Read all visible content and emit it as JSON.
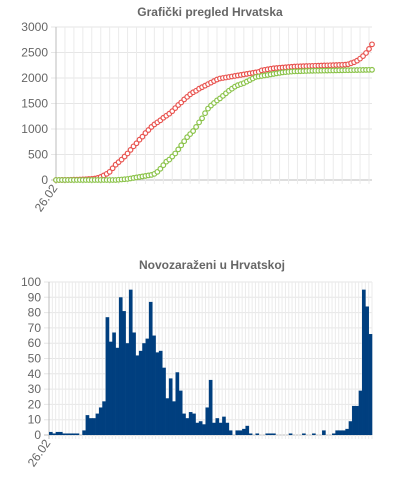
{
  "chart_data": [
    {
      "type": "scatter",
      "title": "Grafički pregled Hrvatska",
      "xlabel": "",
      "ylabel": "",
      "x_tick_labels": [
        "26.02"
      ],
      "y_ticks": [
        "0",
        "500",
        "1000",
        "1500",
        "2000",
        "2500",
        "3000"
      ],
      "ylim": [
        0,
        3000
      ],
      "grid": true,
      "legend": "none",
      "point_count": 107,
      "series": [
        {
          "color": "#e8534f",
          "values": [
            0,
            0,
            1,
            2,
            3,
            4,
            6,
            8,
            10,
            12,
            14,
            18,
            22,
            28,
            40,
            60,
            90,
            120,
            160,
            230,
            300,
            350,
            400,
            460,
            520,
            590,
            660,
            720,
            790,
            850,
            920,
            980,
            1040,
            1090,
            1130,
            1170,
            1220,
            1260,
            1300,
            1350,
            1410,
            1470,
            1520,
            1580,
            1630,
            1680,
            1720,
            1750,
            1790,
            1820,
            1850,
            1880,
            1910,
            1940,
            1970,
            1990,
            2000,
            2010,
            2020,
            2030,
            2040,
            2050,
            2060,
            2070,
            2080,
            2090,
            2100,
            2110,
            2120,
            2150,
            2160,
            2170,
            2180,
            2190,
            2195,
            2200,
            2205,
            2210,
            2215,
            2220,
            2225,
            2228,
            2230,
            2232,
            2234,
            2236,
            2238,
            2240,
            2242,
            2244,
            2246,
            2248,
            2250,
            2252,
            2254,
            2256,
            2258,
            2262,
            2270,
            2290,
            2310,
            2340,
            2380,
            2430,
            2490,
            2570,
            2660
          ]
        },
        {
          "color": "#8bc34a",
          "values": [
            0,
            0,
            0,
            0,
            0,
            0,
            0,
            0,
            0,
            0,
            0,
            0,
            0,
            0,
            0,
            0,
            0,
            0,
            0,
            0,
            0,
            5,
            10,
            15,
            20,
            30,
            40,
            50,
            60,
            70,
            80,
            90,
            100,
            120,
            160,
            220,
            290,
            360,
            400,
            460,
            520,
            600,
            680,
            760,
            840,
            900,
            960,
            1040,
            1130,
            1210,
            1310,
            1400,
            1460,
            1510,
            1560,
            1600,
            1650,
            1700,
            1750,
            1790,
            1830,
            1860,
            1880,
            1900,
            1930,
            1960,
            1990,
            2020,
            2030,
            2040,
            2050,
            2060,
            2070,
            2080,
            2090,
            2100,
            2110,
            2115,
            2120,
            2125,
            2130,
            2132,
            2134,
            2136,
            2138,
            2140,
            2141,
            2142,
            2143,
            2144,
            2145,
            2146,
            2147,
            2148,
            2149,
            2150,
            2151,
            2152,
            2153,
            2154,
            2155,
            2156,
            2157,
            2158,
            2159,
            2160,
            2161
          ]
        }
      ]
    },
    {
      "type": "bar",
      "title": "Novozaraženi u Hrvatskoj",
      "xlabel": "",
      "ylabel": "",
      "x_tick_labels": [
        "26.02"
      ],
      "y_ticks": [
        "0",
        "10",
        "20",
        "30",
        "40",
        "50",
        "60",
        "70",
        "80",
        "90",
        "100"
      ],
      "ylim": [
        0,
        100
      ],
      "grid": true,
      "legend": "none",
      "series": [
        {
          "color": "#003f7f",
          "values": [
            2,
            1,
            2,
            2,
            1,
            1,
            1,
            1,
            1,
            0,
            3,
            13,
            11,
            11,
            14,
            18,
            22,
            77,
            61,
            67,
            57,
            90,
            81,
            60,
            95,
            67,
            52,
            55,
            60,
            63,
            87,
            65,
            54,
            55,
            44,
            24,
            37,
            22,
            41,
            29,
            14,
            11,
            15,
            14,
            8,
            9,
            7,
            18,
            36,
            8,
            11,
            8,
            12,
            8,
            3,
            0,
            3,
            3,
            4,
            6,
            1,
            0,
            1,
            0,
            0,
            1,
            1,
            1,
            0,
            0,
            0,
            0,
            1,
            0,
            0,
            0,
            1,
            0,
            0,
            1,
            0,
            0,
            3,
            0,
            0,
            1,
            3,
            3,
            3,
            4,
            9,
            19,
            19,
            29,
            95,
            84,
            66
          ]
        }
      ]
    }
  ]
}
